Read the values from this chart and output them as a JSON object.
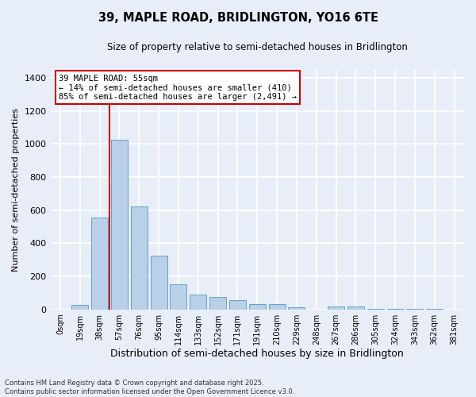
{
  "title_line1": "39, MAPLE ROAD, BRIDLINGTON, YO16 6TE",
  "title_line2": "Size of property relative to semi-detached houses in Bridlington",
  "xlabel": "Distribution of semi-detached houses by size in Bridlington",
  "ylabel": "Number of semi-detached properties",
  "categories": [
    "0sqm",
    "19sqm",
    "38sqm",
    "57sqm",
    "76sqm",
    "95sqm",
    "114sqm",
    "133sqm",
    "152sqm",
    "171sqm",
    "191sqm",
    "210sqm",
    "229sqm",
    "248sqm",
    "267sqm",
    "286sqm",
    "305sqm",
    "324sqm",
    "343sqm",
    "362sqm",
    "381sqm"
  ],
  "values": [
    0,
    25,
    555,
    1025,
    620,
    325,
    150,
    90,
    75,
    55,
    30,
    30,
    15,
    0,
    20,
    20,
    5,
    5,
    5,
    5,
    0
  ],
  "bar_color": "#b8d0e8",
  "bar_edge_color": "#6aa0c8",
  "background_color": "#e8eef8",
  "grid_color": "#ffffff",
  "vline_color": "#cc0000",
  "vline_bar_index": 3,
  "annotation_text": "39 MAPLE ROAD: 55sqm\n← 14% of semi-detached houses are smaller (410)\n85% of semi-detached houses are larger (2,491) →",
  "annotation_box_edgecolor": "#cc0000",
  "footer_text": "Contains HM Land Registry data © Crown copyright and database right 2025.\nContains public sector information licensed under the Open Government Licence v3.0.",
  "ylim": [
    0,
    1450
  ],
  "yticks": [
    0,
    200,
    400,
    600,
    800,
    1000,
    1200,
    1400
  ]
}
